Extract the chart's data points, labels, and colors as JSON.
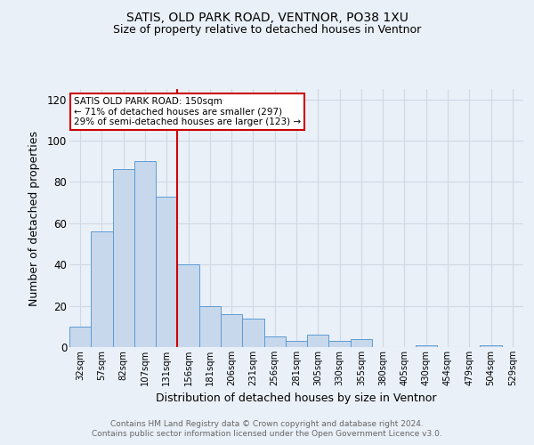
{
  "title1": "SATIS, OLD PARK ROAD, VENTNOR, PO38 1XU",
  "title2": "Size of property relative to detached houses in Ventnor",
  "xlabel": "Distribution of detached houses by size in Ventnor",
  "ylabel": "Number of detached properties",
  "footnote1": "Contains HM Land Registry data © Crown copyright and database right 2024.",
  "footnote2": "Contains public sector information licensed under the Open Government Licence v3.0.",
  "bin_labels": [
    "32sqm",
    "57sqm",
    "82sqm",
    "107sqm",
    "131sqm",
    "156sqm",
    "181sqm",
    "206sqm",
    "231sqm",
    "256sqm",
    "281sqm",
    "305sqm",
    "330sqm",
    "355sqm",
    "380sqm",
    "405sqm",
    "430sqm",
    "454sqm",
    "479sqm",
    "504sqm",
    "529sqm"
  ],
  "bin_values": [
    10,
    56,
    86,
    90,
    73,
    40,
    20,
    16,
    14,
    5,
    3,
    6,
    3,
    4,
    0,
    0,
    1,
    0,
    0,
    1,
    0
  ],
  "bar_color": "#c8d8ec",
  "bar_edge_color": "#5b9bd5",
  "grid_color": "#d0d8e4",
  "bg_color": "#eaf0f8",
  "vline_color": "#cc0000",
  "annotation_text": "SATIS OLD PARK ROAD: 150sqm\n← 71% of detached houses are smaller (297)\n29% of semi-detached houses are larger (123) →",
  "annotation_box_color": "#ffffff",
  "annotation_box_edge": "#cc0000",
  "ylim": [
    0,
    125
  ],
  "yticks": [
    0,
    20,
    40,
    60,
    80,
    100,
    120
  ],
  "footnote_color": "#666666"
}
